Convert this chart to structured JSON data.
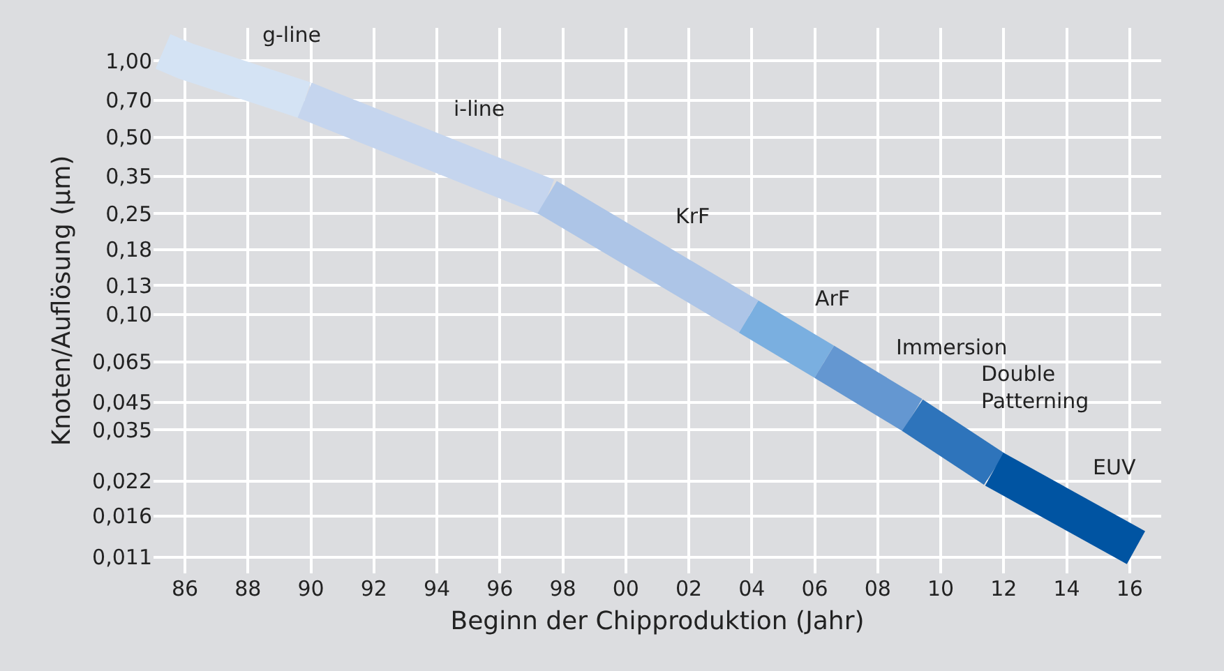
{
  "chart_data": {
    "type": "line",
    "xlabel": "Beginn der Chipproduktion (Jahr)",
    "ylabel": "Knoten/Auflösung (µm)",
    "log": "y",
    "grid": true,
    "legend": false,
    "marker": "none",
    "line_style": "solid",
    "xlim": [
      1985,
      2017
    ],
    "ylim": [
      0.0095,
      1.35
    ],
    "xticks": [
      {
        "value": 1986,
        "label": "86"
      },
      {
        "value": 1988,
        "label": "88"
      },
      {
        "value": 1990,
        "label": "90"
      },
      {
        "value": 1992,
        "label": "92"
      },
      {
        "value": 1994,
        "label": "94"
      },
      {
        "value": 1996,
        "label": "96"
      },
      {
        "value": 1998,
        "label": "98"
      },
      {
        "value": 2000,
        "label": "00"
      },
      {
        "value": 2002,
        "label": "02"
      },
      {
        "value": 2004,
        "label": "04"
      },
      {
        "value": 2006,
        "label": "06"
      },
      {
        "value": 2008,
        "label": "08"
      },
      {
        "value": 2010,
        "label": "10"
      },
      {
        "value": 2012,
        "label": "12"
      },
      {
        "value": 2014,
        "label": "14"
      },
      {
        "value": 2016,
        "label": "16"
      }
    ],
    "yticks": [
      {
        "value": 1,
        "label": "1,00"
      },
      {
        "value": 0.7,
        "label": "0,70"
      },
      {
        "value": 0.5,
        "label": "0,50"
      },
      {
        "value": 0.35,
        "label": "0,35"
      },
      {
        "value": 0.25,
        "label": "0,25"
      },
      {
        "value": 0.18,
        "label": "0,18"
      },
      {
        "value": 0.13,
        "label": "0,13"
      },
      {
        "value": 0.1,
        "label": "0,10"
      },
      {
        "value": 0.065,
        "label": "0,065"
      },
      {
        "value": 0.045,
        "label": "0,045"
      },
      {
        "value": 0.035,
        "label": "0,035"
      },
      {
        "value": 0.022,
        "label": "0,022"
      },
      {
        "value": 0.016,
        "label": "0,016"
      },
      {
        "value": 0.011,
        "label": "0,011"
      }
    ],
    "series": [
      {
        "name": "g-line",
        "color": "#d4e3f4",
        "x": [
          1985.3,
          1986,
          1989.8
        ],
        "values": [
          1.09,
          1.0,
          0.7
        ]
      },
      {
        "name": "i-line",
        "color": "#c5d5ee",
        "x": [
          1989.8,
          1997.5
        ],
        "values": [
          0.7,
          0.29
        ]
      },
      {
        "name": "KrF",
        "color": "#adc5e7",
        "x": [
          1997.5,
          2003.9
        ],
        "values": [
          0.29,
          0.098
        ]
      },
      {
        "name": "ArF",
        "color": "#7aafe0",
        "x": [
          2003.9,
          2006.3
        ],
        "values": [
          0.098,
          0.065
        ]
      },
      {
        "name": "Immersion",
        "color": "#6497d1",
        "x": [
          2006.3,
          2009.1
        ],
        "values": [
          0.065,
          0.04
        ]
      },
      {
        "name": "Double Patterning",
        "color": "#2e74bb",
        "x": [
          2009.1,
          2011.7
        ],
        "values": [
          0.04,
          0.0245
        ]
      },
      {
        "name": "EUV",
        "color": "#0054a2",
        "x": [
          2011.7,
          2016.2
        ],
        "values": [
          0.0245,
          0.012
        ]
      }
    ]
  }
}
